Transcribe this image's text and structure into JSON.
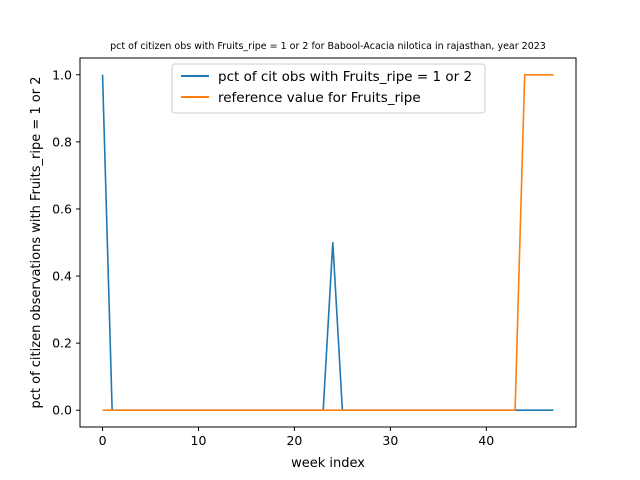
{
  "chart_data": {
    "type": "line",
    "title": "pct of citizen obs with Fruits_ripe = 1 or 2 for Babool-Acacia nilotica in rajasthan, year 2023",
    "xlabel": "week index",
    "ylabel": "pct of citizen observations with Fruits_ripe = 1 or 2",
    "xlim": [
      -2.35,
      49.35
    ],
    "ylim": [
      -0.05,
      1.05
    ],
    "xticks": [
      0,
      10,
      20,
      30,
      40
    ],
    "yticks": [
      0.0,
      0.2,
      0.4,
      0.6,
      0.8,
      1.0
    ],
    "xtick_labels": [
      "0",
      "10",
      "20",
      "30",
      "40"
    ],
    "ytick_labels": [
      "0.0",
      "0.2",
      "0.4",
      "0.6",
      "0.8",
      "1.0"
    ],
    "grid": false,
    "legend_position": "upper center",
    "x": [
      0,
      1,
      2,
      3,
      4,
      5,
      6,
      7,
      8,
      9,
      10,
      11,
      12,
      13,
      14,
      15,
      16,
      17,
      18,
      19,
      20,
      21,
      22,
      23,
      24,
      25,
      26,
      27,
      28,
      29,
      30,
      31,
      32,
      33,
      34,
      35,
      36,
      37,
      38,
      39,
      40,
      41,
      42,
      43,
      44,
      45,
      46,
      47
    ],
    "series": [
      {
        "name": "pct of cit obs with Fruits_ripe = 1 or 2",
        "color": "#1f77b4",
        "values": [
          1,
          0,
          0,
          0,
          0,
          0,
          0,
          0,
          0,
          0,
          0,
          0,
          0,
          0,
          0,
          0,
          0,
          0,
          0,
          0,
          0,
          0,
          0,
          0,
          0.5,
          0,
          0,
          0,
          0,
          0,
          0,
          0,
          0,
          0,
          0,
          0,
          0,
          0,
          0,
          0,
          0,
          0,
          0,
          0,
          0,
          0,
          0,
          0
        ]
      },
      {
        "name": "reference value for Fruits_ripe",
        "color": "#ff7f0e",
        "values": [
          0,
          0,
          0,
          0,
          0,
          0,
          0,
          0,
          0,
          0,
          0,
          0,
          0,
          0,
          0,
          0,
          0,
          0,
          0,
          0,
          0,
          0,
          0,
          0,
          0,
          0,
          0,
          0,
          0,
          0,
          0,
          0,
          0,
          0,
          0,
          0,
          0,
          0,
          0,
          0,
          0,
          0,
          0,
          0,
          1,
          1,
          1,
          1
        ]
      }
    ]
  }
}
